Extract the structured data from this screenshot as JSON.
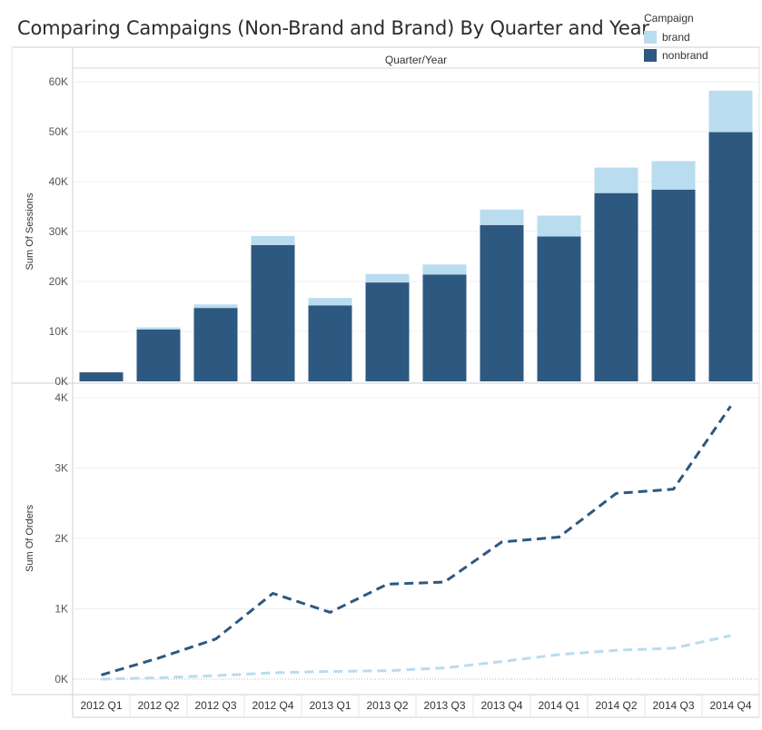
{
  "title": "Comparing Campaigns (Non-Brand and Brand)  By Quarter and Year",
  "legend": {
    "title": "Campaign",
    "items": [
      {
        "label": "brand",
        "color": "#b9dcef"
      },
      {
        "label": "nonbrand",
        "color": "#2d5880"
      }
    ]
  },
  "chart_data": [
    {
      "type": "bar",
      "stacked": true,
      "title": "",
      "column_header": "Quarter/Year",
      "ylabel": "Sum Of Sessions",
      "ylim": [
        0,
        60000
      ],
      "yticks": [
        0,
        10000,
        20000,
        30000,
        40000,
        50000,
        60000
      ],
      "ytick_labels": [
        "0K",
        "10K",
        "20K",
        "30K",
        "40K",
        "50K",
        "60K"
      ],
      "categories": [
        "2012 Q1",
        "2012 Q2",
        "2012 Q3",
        "2012 Q4",
        "2013 Q1",
        "2013 Q2",
        "2013 Q3",
        "2013 Q4",
        "2014 Q1",
        "2014 Q2",
        "2014 Q3",
        "2014 Q4"
      ],
      "series": [
        {
          "name": "nonbrand",
          "color": "#2d5880",
          "values": [
            1800,
            10400,
            14700,
            27300,
            15200,
            19800,
            21400,
            31300,
            29000,
            37700,
            38400,
            49900
          ]
        },
        {
          "name": "brand",
          "color": "#b9dcef",
          "values": [
            0,
            400,
            700,
            1800,
            1500,
            1700,
            2000,
            3100,
            4200,
            5100,
            5700,
            8300
          ]
        }
      ],
      "grid": true
    },
    {
      "type": "line",
      "style": "dashed",
      "ylabel": "Sum Of Orders",
      "xlabel": "",
      "ylim": [
        0,
        4000
      ],
      "yticks": [
        0,
        1000,
        2000,
        3000,
        4000
      ],
      "ytick_labels": [
        "0K",
        "1K",
        "2K",
        "3K",
        "4K"
      ],
      "categories": [
        "2012 Q1",
        "2012 Q2",
        "2012 Q3",
        "2012 Q4",
        "2013 Q1",
        "2013 Q2",
        "2013 Q3",
        "2013 Q4",
        "2014 Q1",
        "2014 Q2",
        "2014 Q3",
        "2014 Q4"
      ],
      "series": [
        {
          "name": "nonbrand",
          "color": "#2d5880",
          "values": [
            60,
            300,
            570,
            1220,
            950,
            1350,
            1380,
            1950,
            2020,
            2640,
            2700,
            3880
          ]
        },
        {
          "name": "brand",
          "color": "#b9dcef",
          "values": [
            0,
            20,
            50,
            90,
            110,
            120,
            160,
            250,
            350,
            410,
            440,
            620
          ]
        }
      ],
      "grid": true
    }
  ]
}
